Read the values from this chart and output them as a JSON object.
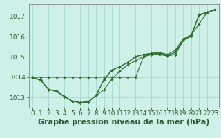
{
  "title": "Graphe pression niveau de la mer (hPa)",
  "bg_color": "#cff0e8",
  "grid_color": "#a8ddd5",
  "line_color": "#2d6e2d",
  "marker_color": "#2d6e2d",
  "tick_color": "#2d5a2d",
  "xlim": [
    -0.5,
    23.5
  ],
  "ylim": [
    1012.5,
    1017.6
  ],
  "yticks": [
    1013,
    1014,
    1015,
    1016,
    1017
  ],
  "xticks": [
    0,
    1,
    2,
    3,
    4,
    5,
    6,
    7,
    8,
    9,
    10,
    11,
    12,
    13,
    14,
    15,
    16,
    17,
    18,
    19,
    20,
    21,
    22,
    23
  ],
  "series": [
    [
      1014.0,
      1013.85,
      1013.4,
      1013.3,
      1013.05,
      1012.82,
      1012.75,
      1012.78,
      1013.1,
      1013.38,
      1013.9,
      1014.3,
      1014.6,
      1014.82,
      1015.02,
      1015.12,
      1015.12,
      1015.05,
      1015.12,
      1015.82,
      1016.02,
      1017.05,
      1017.18,
      1017.32
    ],
    [
      1014.0,
      1013.85,
      1013.4,
      1013.3,
      1013.05,
      1012.82,
      1012.75,
      1012.78,
      1013.1,
      1013.88,
      1014.35,
      1014.52,
      1014.72,
      1015.02,
      1015.12,
      1015.15,
      1015.18,
      1015.08,
      1015.22,
      1015.85,
      1016.05,
      1017.08,
      1017.2,
      1017.32
    ],
    [
      1014.0,
      1013.85,
      1013.4,
      1013.3,
      1013.05,
      1012.82,
      1012.75,
      1012.78,
      1013.1,
      1013.88,
      1014.35,
      1014.52,
      1014.72,
      1015.02,
      1015.12,
      1015.18,
      1015.22,
      1015.12,
      1015.32,
      1015.88,
      1016.08,
      1016.62,
      1017.18,
      1017.32
    ],
    [
      1014.0,
      1014.0,
      1014.0,
      1014.0,
      1014.0,
      1014.0,
      1014.0,
      1014.0,
      1014.0,
      1014.0,
      1014.0,
      1014.0,
      1014.0,
      1014.0,
      1015.02,
      1015.12,
      1015.12,
      1015.08,
      1015.12,
      1015.82,
      1016.02,
      1017.05,
      1017.18,
      1017.32
    ]
  ],
  "title_fontsize": 8,
  "tick_fontsize": 6.5
}
